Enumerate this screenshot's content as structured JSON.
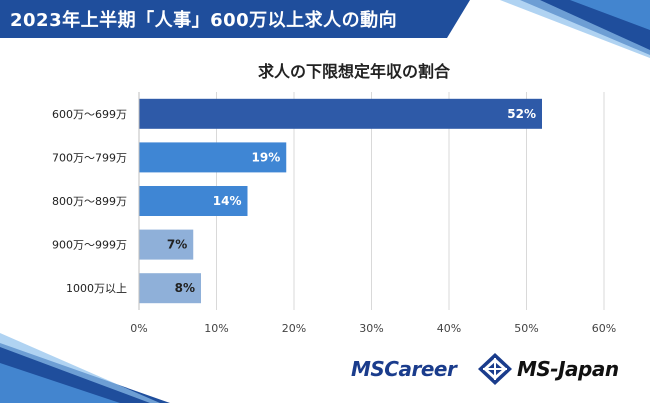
{
  "banner": {
    "title": "2023年上半期「人事」600万以上求人の動向"
  },
  "logos": {
    "mscareer": "MSCareer",
    "msjapan": "MS-Japan"
  },
  "colors": {
    "banner": "#1f4e9c",
    "bar_dark": "#2e5aa8",
    "bar_mid": "#3f86d4",
    "bar_light": "#8fb0d9",
    "grid": "#d9d9d9"
  },
  "chart_data": {
    "type": "bar",
    "orientation": "horizontal",
    "title": "求人の下限想定年収の割合",
    "categories": [
      "600万～699万",
      "700万～799万",
      "800万～899万",
      "900万～999万",
      "1000万以上"
    ],
    "values": [
      52,
      19,
      14,
      7,
      8
    ],
    "data_labels": [
      "52%",
      "19%",
      "14%",
      "7%",
      "8%"
    ],
    "xlim": [
      0,
      60
    ],
    "xticks": [
      "0%",
      "10%",
      "20%",
      "30%",
      "40%",
      "50%",
      "60%"
    ],
    "grid": true,
    "legend": "none"
  }
}
